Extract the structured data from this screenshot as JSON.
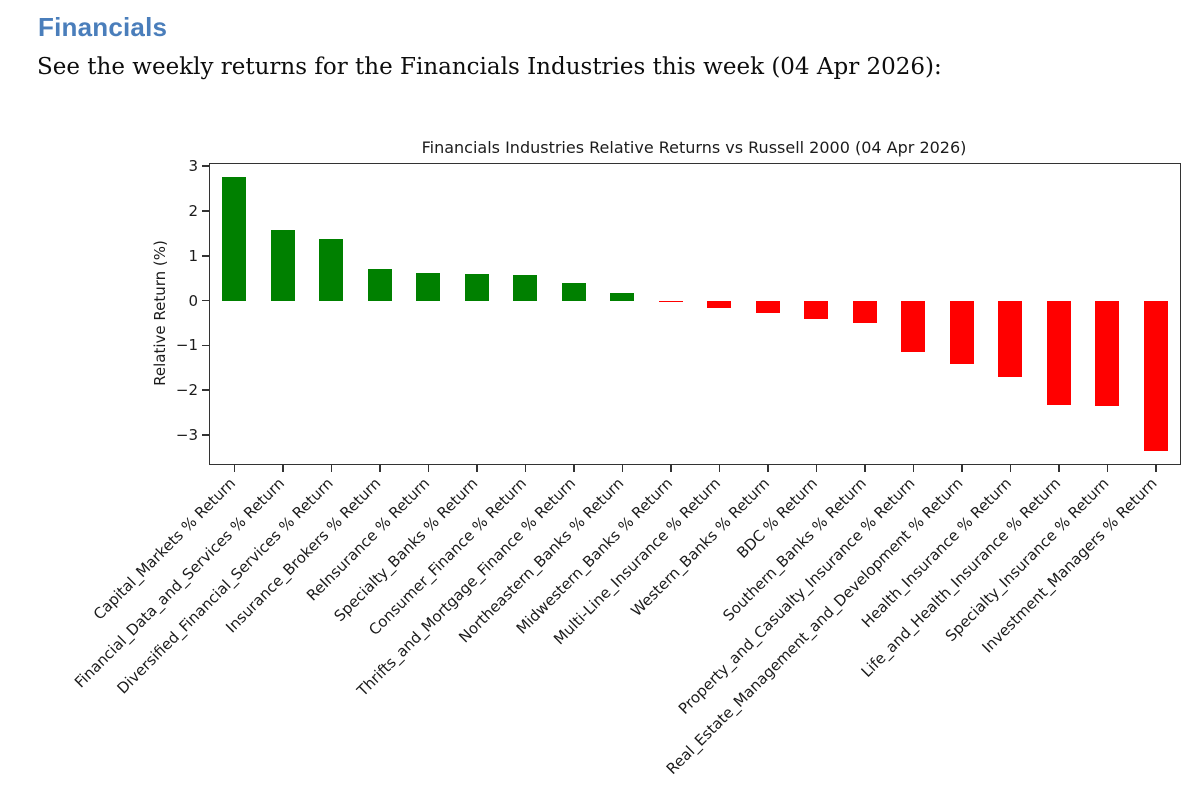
{
  "page": {
    "heading": "Financials",
    "heading_color": "#4a7ebb",
    "intro": "See the weekly returns for the Financials Industries this week (04 Apr 2026):"
  },
  "chart_data": {
    "type": "bar",
    "title": "Financials Industries Relative Returns vs Russell 2000 (04 Apr 2026)",
    "xlabel": "",
    "ylabel": "Relative Return (%)",
    "ylim": [
      -3.65,
      3.05
    ],
    "yticks": [
      3,
      2,
      1,
      0,
      -1,
      -2,
      -3
    ],
    "grid": false,
    "legend": false,
    "x_tick_rotation_deg": 45,
    "positive_color": "#008000",
    "negative_color": "#ff0000",
    "categories": [
      "Capital_Markets % Return",
      "Financial_Data_and_Services % Return",
      "Diversified_Financial_Services % Return",
      "Insurance_Brokers % Return",
      "ReInsurance % Return",
      "Specialty_Banks % Return",
      "Consumer_Finance % Return",
      "Thrifts_and_Mortgage_Finance % Return",
      "Northeastern_Banks % Return",
      "Midwestern_Banks % Return",
      "Multi-Line_Insurance % Return",
      "Western_Banks % Return",
      "BDC % Return",
      "Southern_Banks % Return",
      "Property_and_Casualty_Insurance % Return",
      "Real_Estate_Management_and_Development % Return",
      "Health_Insurance % Return",
      "Life_and_Health_Insurance % Return",
      "Specialty_Insurance % Return",
      "Investment_Managers % Return"
    ],
    "values": [
      2.75,
      1.57,
      1.37,
      0.71,
      0.62,
      0.6,
      0.57,
      0.4,
      0.18,
      -0.02,
      -0.16,
      -0.27,
      -0.41,
      -0.5,
      -1.15,
      -1.41,
      -1.7,
      -2.33,
      -2.35,
      -3.37
    ]
  }
}
